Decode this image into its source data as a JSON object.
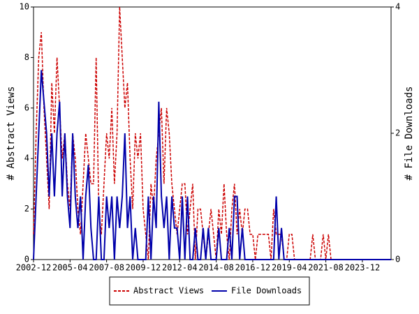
{
  "chart_data": {
    "type": "line",
    "y_label": "# Abstract Views",
    "y2_label": "# File Downloads",
    "categories": [
      "2002-12",
      null,
      null,
      null,
      null,
      null,
      null,
      null,
      null,
      null,
      null,
      null,
      null,
      null,
      "2005-04",
      null,
      null,
      null,
      null,
      null,
      null,
      null,
      null,
      null,
      null,
      null,
      null,
      null,
      "2007-08",
      null,
      null,
      null,
      null,
      null,
      null,
      null,
      null,
      null,
      null,
      null,
      null,
      null,
      "2009-12",
      null,
      null,
      null,
      null,
      null,
      null,
      null,
      null,
      null,
      null,
      null,
      null,
      null,
      "2012-04",
      null,
      null,
      null,
      null,
      null,
      null,
      null,
      null,
      null,
      null,
      null,
      null,
      null,
      "2014-08",
      null,
      null,
      null,
      null,
      null,
      null,
      null,
      null,
      null,
      null,
      null,
      null,
      null,
      "2016-12",
      null,
      null,
      null,
      null,
      null,
      null,
      null,
      null,
      null,
      null,
      null,
      null,
      null,
      "2019-04",
      null,
      null,
      null,
      null,
      null,
      null,
      null,
      null,
      null,
      null,
      null,
      null,
      null,
      "2021-08",
      null,
      null,
      null,
      null,
      null,
      null,
      null,
      null,
      null,
      null,
      null,
      null,
      null,
      "2023-12",
      null,
      null,
      null,
      null,
      null,
      null,
      null,
      null,
      null,
      null,
      null
    ],
    "series": [
      {
        "name": "Abstract Views",
        "color": "#cc0000",
        "axis": "y",
        "values": [
          1,
          5,
          8,
          9,
          6,
          4,
          2,
          7,
          5,
          8,
          6,
          4,
          5,
          3,
          2,
          5,
          4,
          2,
          1,
          3,
          5,
          4,
          3,
          3,
          8,
          2,
          1,
          3,
          5,
          4,
          6,
          3,
          5,
          10,
          8,
          6,
          7,
          4,
          2,
          5,
          4,
          5,
          2,
          1,
          0,
          3,
          2,
          4,
          5,
          6,
          3,
          6,
          5,
          3,
          2,
          1,
          2,
          3,
          3,
          1,
          2,
          3,
          0,
          2,
          2,
          1,
          0,
          1,
          2,
          1,
          0,
          2,
          1,
          3,
          1,
          0,
          2,
          3,
          1,
          2,
          1,
          2,
          2,
          1,
          1,
          0,
          1,
          1,
          1,
          1,
          1,
          0,
          2,
          1,
          1,
          1,
          0,
          0,
          1,
          1,
          0,
          0,
          0,
          0,
          0,
          0,
          0,
          1,
          0,
          0,
          0,
          1,
          0,
          1,
          0,
          0,
          0,
          0,
          0,
          0,
          0,
          0,
          0,
          0,
          0,
          0,
          0,
          0,
          0,
          0,
          0,
          0,
          0,
          0,
          0,
          0,
          0,
          0
        ]
      },
      {
        "name": "File Downloads",
        "color": "#0000aa",
        "axis": "y2",
        "values": [
          0,
          1,
          2,
          3,
          2.5,
          2,
          1,
          2,
          1,
          2,
          2.5,
          1,
          2,
          1,
          0.5,
          2,
          1,
          0.5,
          1,
          0,
          1,
          1.5,
          0.5,
          0,
          0,
          1,
          0,
          0,
          1,
          0.5,
          1,
          0,
          1,
          0.5,
          1,
          2,
          0.5,
          1,
          0,
          0.5,
          0,
          0,
          0,
          0,
          1,
          0,
          1,
          0.5,
          2.5,
          1,
          0.5,
          1,
          0,
          1,
          0.5,
          0.5,
          0,
          1,
          0,
          1,
          0,
          0,
          0.5,
          0,
          0,
          0.5,
          0,
          0.5,
          0,
          0,
          0,
          0.5,
          0,
          0,
          0,
          0.5,
          0,
          1,
          1,
          0,
          0.5,
          0,
          0,
          0,
          0,
          0,
          0,
          0,
          0,
          0,
          0,
          0,
          0,
          1,
          0,
          0.5,
          0,
          0,
          0,
          0,
          0,
          0,
          0,
          0,
          0,
          0,
          0,
          0,
          0,
          0,
          0,
          0,
          0,
          0,
          0,
          0,
          0,
          0,
          0,
          0,
          0,
          0,
          0,
          0,
          0,
          0,
          0,
          0,
          0,
          0,
          0,
          0,
          0,
          0,
          0,
          0,
          0,
          0
        ]
      }
    ],
    "ylim": [
      0,
      10
    ],
    "yticks": [
      0,
      2,
      4,
      6,
      8,
      10
    ],
    "y2lim": [
      0,
      4
    ],
    "y2ticks": [
      0,
      2,
      4
    ],
    "legend": "bottom"
  }
}
